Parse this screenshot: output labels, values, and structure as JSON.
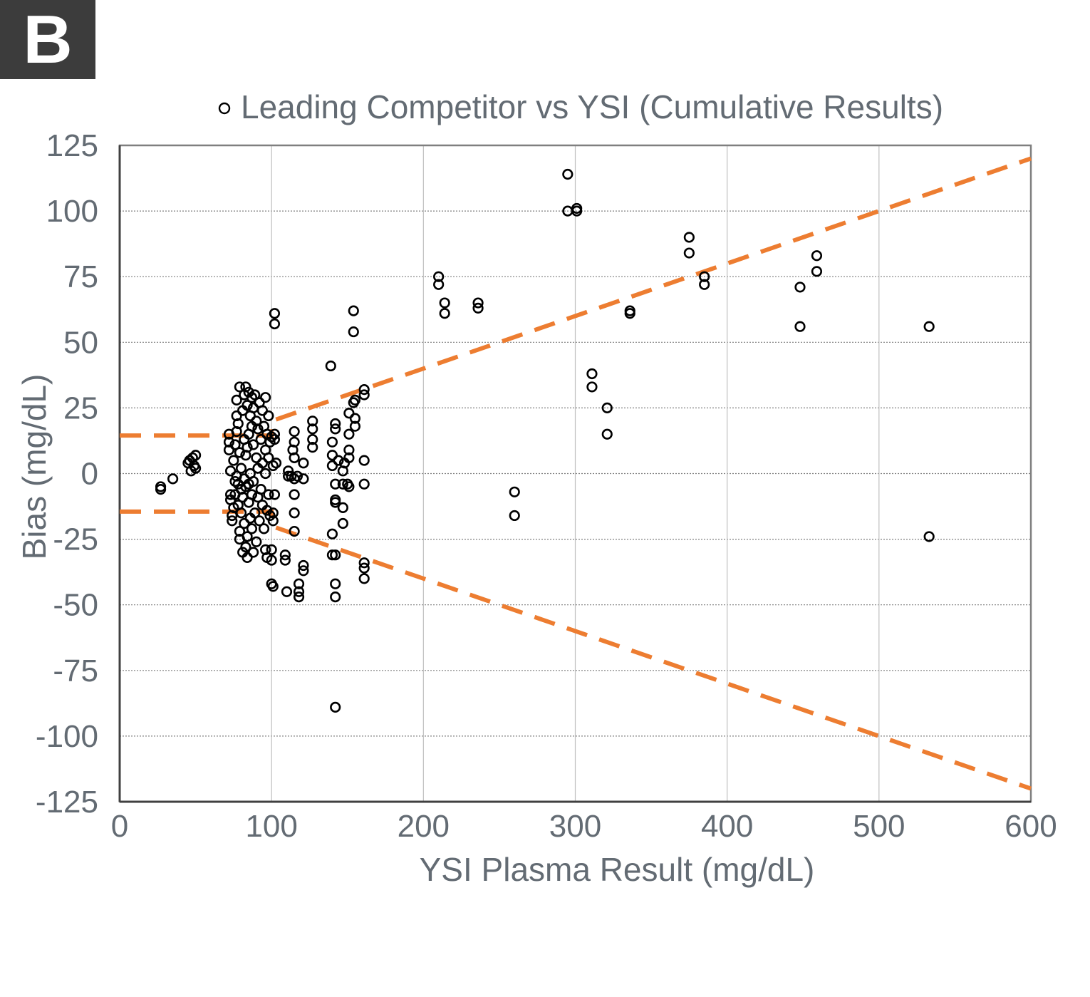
{
  "panel_label": "B",
  "chart_data": {
    "type": "scatter",
    "title": "",
    "xlabel": "YSI Plasma Result (mg/dL)",
    "ylabel": "Bias (mg/dL)",
    "xlim": [
      0,
      600
    ],
    "ylim": [
      -125,
      125
    ],
    "x_ticks": [
      0,
      100,
      200,
      300,
      400,
      500,
      600
    ],
    "x_tick_labels": [
      "0",
      "100",
      "200",
      "300",
      "400",
      "500",
      "600"
    ],
    "y_ticks": [
      125,
      100,
      75,
      50,
      25,
      0,
      -25,
      -50,
      -75,
      -100,
      -125
    ],
    "y_tick_labels": [
      "125",
      "100",
      "75",
      "50",
      "25",
      "0",
      "-25",
      "-50",
      "-75",
      "-100",
      "-125"
    ],
    "grid": true,
    "legend": {
      "placement": "top",
      "entries": [
        "Leading Competitor vs YSI (Cumulative Results)"
      ]
    },
    "series": [
      {
        "name": "Leading Competitor vs YSI (Cumulative Results)",
        "marker": "open-circle",
        "color": "#000000",
        "points": [
          [
            27,
            -5
          ],
          [
            27,
            -6
          ],
          [
            35,
            -2
          ],
          [
            45,
            4
          ],
          [
            46,
            5
          ],
          [
            47,
            1
          ],
          [
            48,
            6
          ],
          [
            49,
            3
          ],
          [
            50,
            2
          ],
          [
            50,
            7
          ],
          [
            72,
            15
          ],
          [
            72,
            12
          ],
          [
            72,
            9
          ],
          [
            73,
            1
          ],
          [
            73,
            -8
          ],
          [
            73,
            -10
          ],
          [
            74,
            -16
          ],
          [
            74,
            -18
          ],
          [
            75,
            -13
          ],
          [
            75,
            5
          ],
          [
            76,
            -3
          ],
          [
            76,
            -8
          ],
          [
            76,
            11
          ],
          [
            77,
            28
          ],
          [
            77,
            22
          ],
          [
            77,
            16
          ],
          [
            77,
            -1
          ],
          [
            78,
            -4
          ],
          [
            78,
            -12
          ],
          [
            78,
            19
          ],
          [
            79,
            33
          ],
          [
            79,
            -22
          ],
          [
            79,
            -25
          ],
          [
            79,
            8
          ],
          [
            80,
            -6
          ],
          [
            80,
            2
          ],
          [
            80,
            -15
          ],
          [
            81,
            24
          ],
          [
            81,
            -9
          ],
          [
            81,
            -30
          ],
          [
            82,
            30
          ],
          [
            82,
            13
          ],
          [
            82,
            -2
          ],
          [
            82,
            -19
          ],
          [
            83,
            33
          ],
          [
            83,
            7
          ],
          [
            83,
            -5
          ],
          [
            83,
            -28
          ],
          [
            84,
            26
          ],
          [
            84,
            10
          ],
          [
            84,
            -24
          ],
          [
            84,
            -32
          ],
          [
            85,
            31
          ],
          [
            85,
            15
          ],
          [
            85,
            -4
          ],
          [
            85,
            -11
          ],
          [
            86,
            22
          ],
          [
            86,
            0
          ],
          [
            86,
            -17
          ],
          [
            87,
            29
          ],
          [
            87,
            18
          ],
          [
            87,
            -8
          ],
          [
            87,
            -21
          ],
          [
            88,
            25
          ],
          [
            88,
            11
          ],
          [
            88,
            -3
          ],
          [
            88,
            -30
          ],
          [
            89,
            30
          ],
          [
            89,
            -15
          ],
          [
            90,
            20
          ],
          [
            90,
            6
          ],
          [
            90,
            -26
          ],
          [
            91,
            17
          ],
          [
            91,
            2
          ],
          [
            91,
            -9
          ],
          [
            92,
            27
          ],
          [
            92,
            -18
          ],
          [
            93,
            13
          ],
          [
            93,
            -6
          ],
          [
            94,
            24
          ],
          [
            94,
            4
          ],
          [
            94,
            -12
          ],
          [
            95,
            18
          ],
          [
            95,
            -21
          ],
          [
            96,
            29
          ],
          [
            96,
            9
          ],
          [
            96,
            0
          ],
          [
            96,
            -29
          ],
          [
            97,
            15
          ],
          [
            97,
            -14
          ],
          [
            97,
            -32
          ],
          [
            98,
            22
          ],
          [
            98,
            6
          ],
          [
            98,
            -8
          ],
          [
            99,
            12
          ],
          [
            99,
            -16
          ],
          [
            100,
            -29
          ],
          [
            100,
            -33
          ],
          [
            100,
            14
          ],
          [
            100,
            -42
          ],
          [
            101,
            -18
          ],
          [
            101,
            -15
          ],
          [
            101,
            -43
          ],
          [
            101,
            3
          ],
          [
            102,
            13
          ],
          [
            102,
            15
          ],
          [
            102,
            -8
          ],
          [
            102,
            57
          ],
          [
            102,
            61
          ],
          [
            103,
            4
          ],
          [
            109,
            -31
          ],
          [
            109,
            -33
          ],
          [
            110,
            -45
          ],
          [
            111,
            1
          ],
          [
            111,
            -1
          ],
          [
            113,
            -1
          ],
          [
            114,
            9
          ],
          [
            115,
            16
          ],
          [
            115,
            12
          ],
          [
            115,
            6
          ],
          [
            115,
            -2
          ],
          [
            115,
            -8
          ],
          [
            115,
            -15
          ],
          [
            115,
            -22
          ],
          [
            117,
            -1
          ],
          [
            118,
            -42
          ],
          [
            118,
            -47
          ],
          [
            118,
            -45
          ],
          [
            121,
            -2
          ],
          [
            121,
            -35
          ],
          [
            121,
            -37
          ],
          [
            121,
            4
          ],
          [
            127,
            20
          ],
          [
            127,
            17
          ],
          [
            127,
            13
          ],
          [
            127,
            10
          ],
          [
            139,
            41
          ],
          [
            140,
            12
          ],
          [
            140,
            7
          ],
          [
            140,
            3
          ],
          [
            140,
            -23
          ],
          [
            140,
            -31
          ],
          [
            142,
            19
          ],
          [
            142,
            17
          ],
          [
            142,
            -4
          ],
          [
            142,
            -10
          ],
          [
            142,
            -11
          ],
          [
            142,
            -31
          ],
          [
            142,
            -42
          ],
          [
            142,
            -47
          ],
          [
            142,
            -89
          ],
          [
            144,
            5
          ],
          [
            147,
            -4
          ],
          [
            147,
            -13
          ],
          [
            147,
            -19
          ],
          [
            147,
            1
          ],
          [
            148,
            4
          ],
          [
            150,
            -4
          ],
          [
            151,
            23
          ],
          [
            151,
            15
          ],
          [
            151,
            9
          ],
          [
            151,
            6
          ],
          [
            151,
            -5
          ],
          [
            154,
            62
          ],
          [
            154,
            54
          ],
          [
            154,
            27
          ],
          [
            155,
            21
          ],
          [
            155,
            28
          ],
          [
            155,
            18
          ],
          [
            161,
            30
          ],
          [
            161,
            32
          ],
          [
            161,
            5
          ],
          [
            161,
            -4
          ],
          [
            161,
            -34
          ],
          [
            161,
            -36
          ],
          [
            161,
            -40
          ],
          [
            210,
            75
          ],
          [
            210,
            72
          ],
          [
            214,
            65
          ],
          [
            214,
            61
          ],
          [
            236,
            65
          ],
          [
            236,
            63
          ],
          [
            260,
            -7
          ],
          [
            260,
            -16
          ],
          [
            295,
            114
          ],
          [
            295,
            100
          ],
          [
            301,
            101
          ],
          [
            301,
            100
          ],
          [
            311,
            38
          ],
          [
            311,
            33
          ],
          [
            321,
            25
          ],
          [
            321,
            15
          ],
          [
            336,
            62
          ],
          [
            336,
            61
          ],
          [
            375,
            90
          ],
          [
            375,
            84
          ],
          [
            385,
            75
          ],
          [
            385,
            72
          ],
          [
            448,
            71
          ],
          [
            448,
            56
          ],
          [
            459,
            83
          ],
          [
            459,
            77
          ],
          [
            533,
            56
          ],
          [
            533,
            -24
          ]
        ]
      }
    ],
    "limit_lines": {
      "color": "#ed7d31",
      "style": "dashed",
      "upper": [
        [
          0,
          14.5
        ],
        [
          100,
          14.5
        ],
        [
          100,
          20
        ],
        [
          600,
          120
        ]
      ],
      "lower": [
        [
          0,
          -14.5
        ],
        [
          100,
          -14.5
        ],
        [
          100,
          -20
        ],
        [
          600,
          -120
        ]
      ]
    }
  }
}
